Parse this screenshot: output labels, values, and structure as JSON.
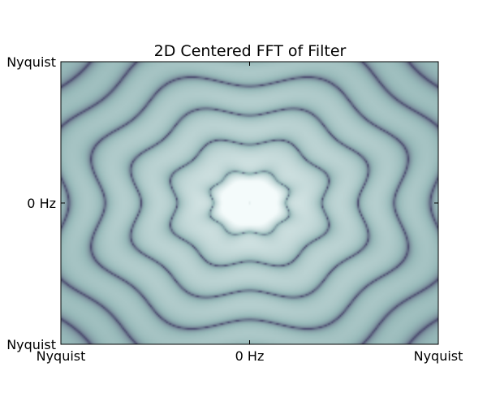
{
  "chart_data": {
    "type": "heatmap",
    "title": "2D Centered FFT of Filter",
    "xlabel": "",
    "ylabel": "",
    "x_ticks": [
      "Nyquist",
      "0 Hz",
      "Nyquist"
    ],
    "y_ticks": [
      "Nyquist",
      "0 Hz",
      "Nyquist"
    ],
    "x_range": [
      -1,
      1
    ],
    "y_range": [
      -1,
      1
    ],
    "grid": false,
    "colormap": "bone",
    "colors": {
      "dark": "#4b4a6e",
      "mid": "#97b9b9",
      "light": "#f4fbfb"
    }
  }
}
